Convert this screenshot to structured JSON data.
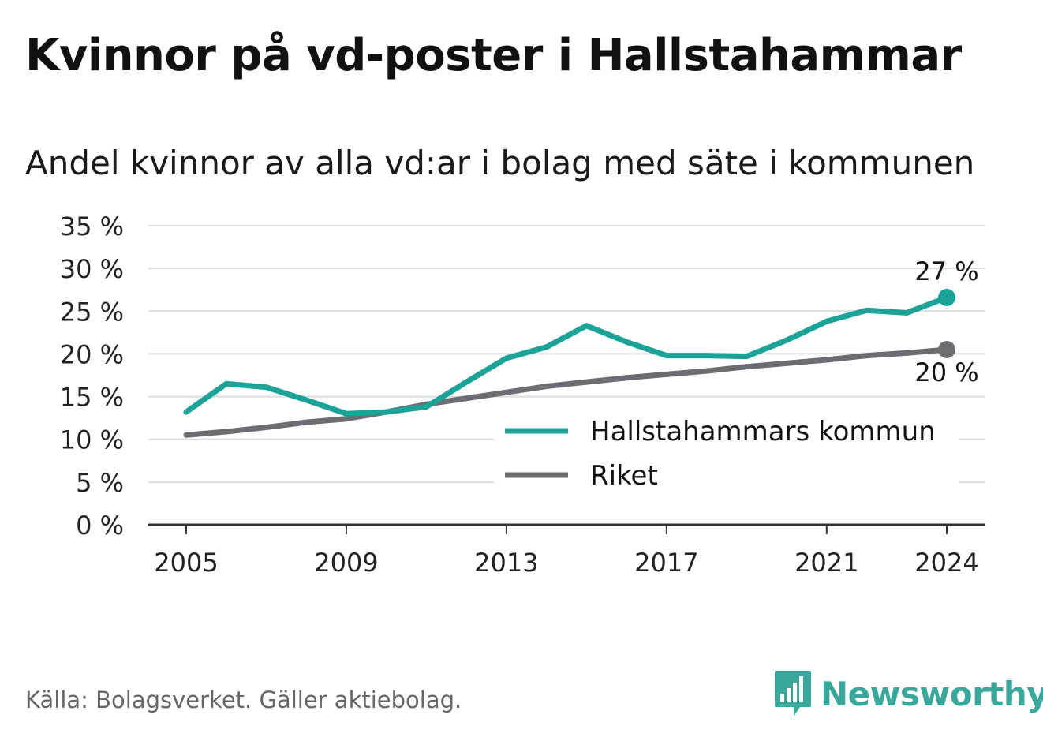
{
  "title": "Kvinnor på vd-poster i Hallstahammar",
  "subtitle": "Andel kvinnor av alla vd:ar i bolag med säte i kommunen",
  "source": "Källa: Bolagsverket. Gäller aktiebolag.",
  "brand": {
    "name": "Newsworthy",
    "color": "#39a89a",
    "icon": "newsworthy-logo-icon"
  },
  "chart_data": {
    "type": "line",
    "x": [
      2005,
      2006,
      2007,
      2008,
      2009,
      2010,
      2011,
      2012,
      2013,
      2014,
      2015,
      2016,
      2017,
      2018,
      2019,
      2020,
      2021,
      2022,
      2023,
      2024
    ],
    "x_ticks": [
      2005,
      2009,
      2013,
      2017,
      2021,
      2024
    ],
    "x_tick_labels": [
      "2005",
      "2009",
      "2013",
      "2017",
      "2021",
      "2024"
    ],
    "ylim": [
      0,
      35
    ],
    "y_ticks": [
      0,
      5,
      10,
      15,
      20,
      25,
      30,
      35
    ],
    "y_tick_labels": [
      "0 %",
      "5 %",
      "10 %",
      "15 %",
      "20 %",
      "25 %",
      "30 %",
      "35 %"
    ],
    "grid": true,
    "legend_position": "bottom-right",
    "series": [
      {
        "name": "Hallstahammars kommun",
        "color": "#1aa396",
        "values": [
          13.2,
          16.5,
          16.1,
          14.6,
          13.0,
          13.2,
          13.8,
          16.7,
          19.5,
          20.8,
          23.3,
          21.4,
          19.8,
          19.8,
          19.7,
          21.6,
          23.8,
          25.1,
          24.8,
          26.6
        ],
        "end_label": "27 %",
        "end_label_position": "above"
      },
      {
        "name": "Riket",
        "color": "#6e6c72",
        "values": [
          10.5,
          10.9,
          11.4,
          12.0,
          12.4,
          13.2,
          14.1,
          14.8,
          15.5,
          16.2,
          16.7,
          17.2,
          17.6,
          18.0,
          18.5,
          18.9,
          19.3,
          19.8,
          20.1,
          20.5
        ],
        "end_label": "20 %",
        "end_label_position": "below"
      }
    ]
  }
}
